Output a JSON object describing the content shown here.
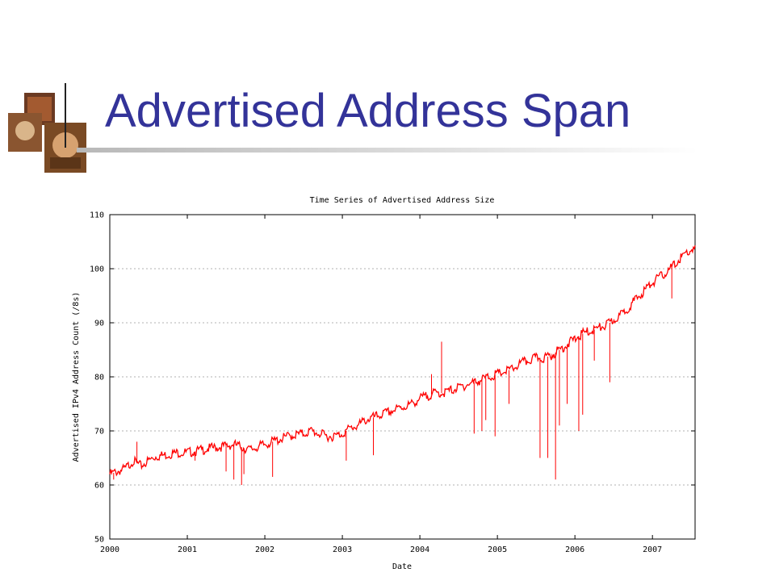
{
  "slide": {
    "title": "Advertised Address Span"
  },
  "colors": {
    "title": "#333399",
    "series": "#ff0000",
    "grid": "#b0b0b0",
    "axis": "#000000"
  },
  "decoration": {
    "icon": "stacked-painting-thumbnails"
  },
  "chart_data": {
    "type": "line",
    "title": "Time Series of Advertised Address Size",
    "xlabel": "Date",
    "ylabel": "Advertised IPv4 Address Count (/8s)",
    "xlim": [
      2000.0,
      2007.55
    ],
    "ylim": [
      50,
      110
    ],
    "xticks": [
      2000,
      2001,
      2002,
      2003,
      2004,
      2005,
      2006,
      2007
    ],
    "yticks": [
      50,
      60,
      70,
      80,
      90,
      100,
      110
    ],
    "grid": true,
    "legend": "none",
    "series": [
      {
        "values_x": [
          2000.0,
          2000.1,
          2000.2,
          2000.3,
          2000.4,
          2000.5,
          2000.6,
          2000.7,
          2000.8,
          2000.9,
          2001.0,
          2001.1,
          2001.2,
          2001.3,
          2001.4,
          2001.5,
          2001.6,
          2001.7,
          2001.8,
          2001.9,
          2002.0,
          2002.1,
          2002.2,
          2002.3,
          2002.4,
          2002.5,
          2002.6,
          2002.7,
          2002.8,
          2002.9,
          2003.0,
          2003.1,
          2003.2,
          2003.3,
          2003.4,
          2003.5,
          2003.6,
          2003.7,
          2003.8,
          2003.9,
          2004.0,
          2004.1,
          2004.2,
          2004.3,
          2004.4,
          2004.5,
          2004.6,
          2004.7,
          2004.8,
          2004.9,
          2005.0,
          2005.1,
          2005.2,
          2005.3,
          2005.4,
          2005.5,
          2005.6,
          2005.7,
          2005.8,
          2005.9,
          2006.0,
          2006.1,
          2006.2,
          2006.3,
          2006.4,
          2006.5,
          2006.6,
          2006.7,
          2006.8,
          2006.9,
          2007.0,
          2007.1,
          2007.2,
          2007.3,
          2007.4,
          2007.5
        ],
        "values_y": [
          62.0,
          62.5,
          63.0,
          64.5,
          63.5,
          64.5,
          65.3,
          65.5,
          65.8,
          66.0,
          66.0,
          66.2,
          66.5,
          66.8,
          67.0,
          67.2,
          67.5,
          67.0,
          66.5,
          67.0,
          67.5,
          68.0,
          68.5,
          69.0,
          69.3,
          69.5,
          70.0,
          69.5,
          69.0,
          69.0,
          69.5,
          70.5,
          71.0,
          72.0,
          72.5,
          73.0,
          73.5,
          74.0,
          74.5,
          75.0,
          76.0,
          76.5,
          77.0,
          77.0,
          77.5,
          78.0,
          78.5,
          79.0,
          79.5,
          80.0,
          80.5,
          81.0,
          81.5,
          82.5,
          83.0,
          83.5,
          83.5,
          84.0,
          85.0,
          86.0,
          87.0,
          88.0,
          88.5,
          89.0,
          89.5,
          90.5,
          91.5,
          93.0,
          94.5,
          96.0,
          97.5,
          98.5,
          99.5,
          101.0,
          102.5,
          103.5
        ]
      }
    ],
    "dips": [
      {
        "x": 2000.05,
        "y": 61.0
      },
      {
        "x": 2000.35,
        "y": 68.0
      },
      {
        "x": 2001.1,
        "y": 64.5
      },
      {
        "x": 2001.5,
        "y": 62.5
      },
      {
        "x": 2001.6,
        "y": 61.0
      },
      {
        "x": 2001.7,
        "y": 60.0
      },
      {
        "x": 2001.73,
        "y": 62.0
      },
      {
        "x": 2002.1,
        "y": 61.5
      },
      {
        "x": 2003.05,
        "y": 64.5
      },
      {
        "x": 2003.4,
        "y": 65.5
      },
      {
        "x": 2004.7,
        "y": 69.5
      },
      {
        "x": 2004.8,
        "y": 70.0
      },
      {
        "x": 2004.85,
        "y": 72.0
      },
      {
        "x": 2004.97,
        "y": 69.0
      },
      {
        "x": 2005.15,
        "y": 75.0
      },
      {
        "x": 2005.55,
        "y": 65.0
      },
      {
        "x": 2005.65,
        "y": 65.0
      },
      {
        "x": 2005.75,
        "y": 61.0
      },
      {
        "x": 2005.8,
        "y": 71.0
      },
      {
        "x": 2005.9,
        "y": 75.0
      },
      {
        "x": 2006.05,
        "y": 70.0
      },
      {
        "x": 2006.1,
        "y": 73.0
      },
      {
        "x": 2006.25,
        "y": 83.0
      },
      {
        "x": 2006.45,
        "y": 79.0
      },
      {
        "x": 2007.25,
        "y": 94.5
      }
    ],
    "spikes": [
      {
        "x": 2004.15,
        "y": 80.5
      },
      {
        "x": 2004.28,
        "y": 86.5
      }
    ]
  }
}
